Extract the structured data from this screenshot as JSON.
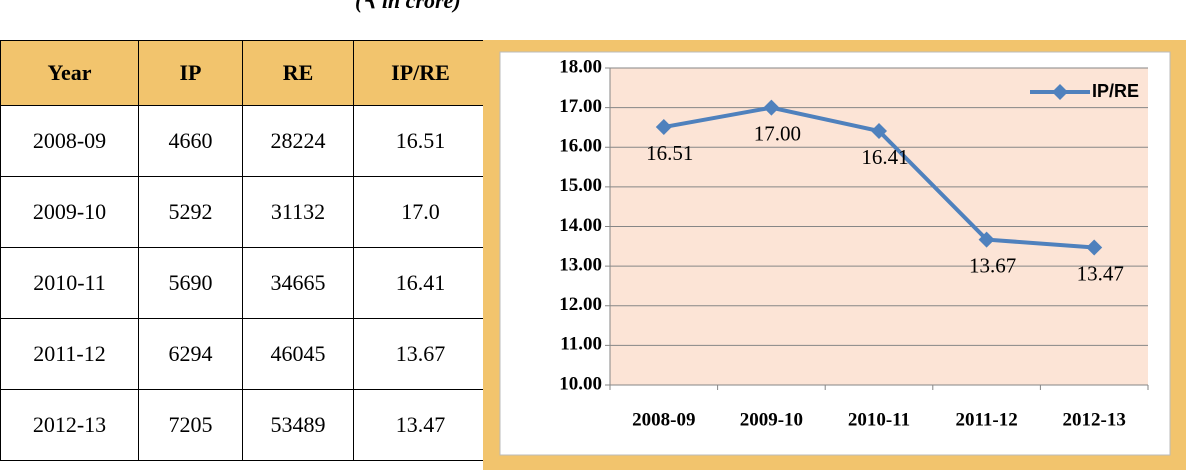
{
  "caption": "(₹ in crore)",
  "table": {
    "header": [
      "Year",
      "IP",
      "RE",
      "IP/RE"
    ],
    "rows": [
      [
        "2008-09",
        "4660",
        "28224",
        "16.51"
      ],
      [
        "2009-10",
        "5292",
        "31132",
        "17.0"
      ],
      [
        "2010-11",
        "5690",
        "34665",
        "16.41"
      ],
      [
        "2011-12",
        "6294",
        "46045",
        "13.67"
      ],
      [
        "2012-13",
        "7205",
        "53489",
        "13.47"
      ]
    ]
  },
  "chart_data": {
    "type": "line",
    "categories": [
      "2008-09",
      "2009-10",
      "2010-11",
      "2011-12",
      "2012-13"
    ],
    "series": [
      {
        "name": "IP/RE",
        "color": "#4f81bd",
        "values": [
          16.51,
          17,
          16.41,
          13.67,
          13.47
        ],
        "value_labels": [
          "16.51",
          "17.00",
          "16.41",
          "13.67",
          "13.47"
        ]
      }
    ],
    "ylim": [
      10,
      18
    ],
    "yticks": [
      {
        "value": 10,
        "label": "10.00"
      },
      {
        "value": 11,
        "label": "11.00"
      },
      {
        "value": 12,
        "label": "12.00"
      },
      {
        "value": 13,
        "label": "13.00"
      },
      {
        "value": 14,
        "label": "14.00"
      },
      {
        "value": 15,
        "label": "15.00"
      },
      {
        "value": 16,
        "label": "16.00"
      },
      {
        "value": 17,
        "label": "17.00"
      },
      {
        "value": 18,
        "label": "18.00"
      }
    ],
    "grid": true,
    "legend": "top-right"
  }
}
